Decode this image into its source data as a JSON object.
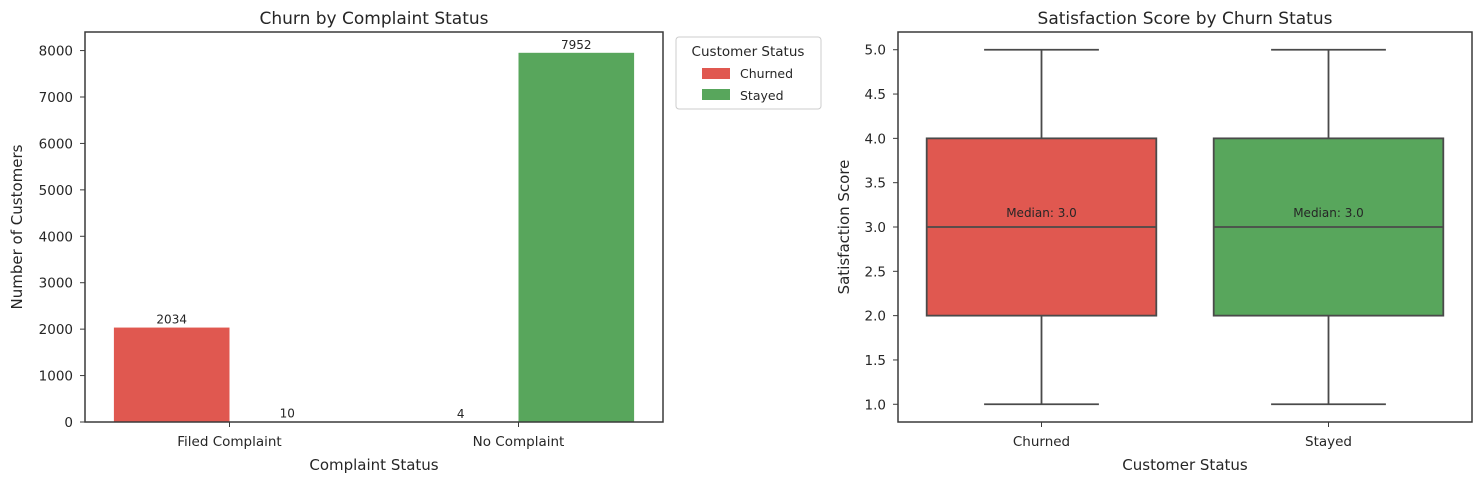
{
  "colors": {
    "churned": "#e05850",
    "stayed": "#58a65c",
    "axis": "#3a3a3a",
    "whisker": "#4a4a4a"
  },
  "chart_data": [
    {
      "type": "bar",
      "title": "Churn by Complaint Status",
      "xlabel": "Complaint Status",
      "ylabel": "Number of Customers",
      "categories": [
        "Filed Complaint",
        "No Complaint"
      ],
      "series": [
        {
          "name": "Churned",
          "values": [
            2034,
            4
          ]
        },
        {
          "name": "Stayed",
          "values": [
            10,
            7952
          ]
        }
      ],
      "ylim": [
        0,
        8400
      ],
      "yticks": [
        0,
        1000,
        2000,
        3000,
        4000,
        5000,
        6000,
        7000,
        8000
      ],
      "legend": {
        "title": "Customer Status",
        "placement": "outside-top-right",
        "entries": [
          "Churned",
          "Stayed"
        ]
      },
      "grid": false
    },
    {
      "type": "box",
      "title": "Satisfaction Score by Churn Status",
      "xlabel": "Customer Status",
      "ylabel": "Satisfaction Score",
      "categories": [
        "Churned",
        "Stayed"
      ],
      "boxes": [
        {
          "name": "Churned",
          "min": 1.0,
          "q1": 2.0,
          "median": 3.0,
          "q3": 4.0,
          "max": 5.0,
          "annotation": "Median: 3.0"
        },
        {
          "name": "Stayed",
          "min": 1.0,
          "q1": 2.0,
          "median": 3.0,
          "q3": 4.0,
          "max": 5.0,
          "annotation": "Median: 3.0"
        }
      ],
      "ylim": [
        0.8,
        5.2
      ],
      "yticks": [
        "1.0",
        "1.5",
        "2.0",
        "2.5",
        "3.0",
        "3.5",
        "4.0",
        "4.5",
        "5.0"
      ],
      "grid": false
    }
  ]
}
